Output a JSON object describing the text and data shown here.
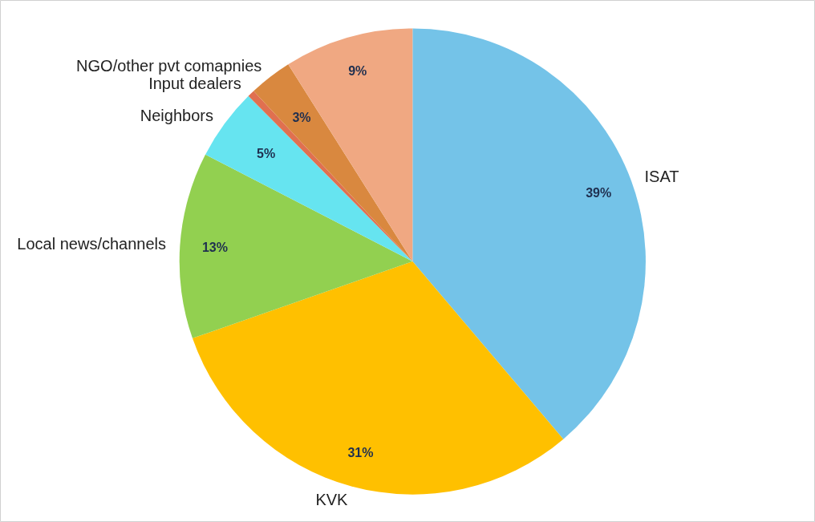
{
  "chart_data": {
    "type": "pie",
    "categories": [
      "ISAT",
      "KVK",
      "Local news/channels",
      "Neighbors",
      "Input dealers",
      "NGO/other pvt comapnies",
      null
    ],
    "values": [
      39,
      31,
      13,
      5,
      0.5,
      3,
      9
    ],
    "colors": [
      "#74c3e8",
      "#ffc000",
      "#92d050",
      "#66e4f0",
      "#e07050",
      "#d9883f",
      "#f0a882"
    ],
    "value_labels": [
      "39%",
      "31%",
      "13%",
      "5%",
      null,
      "3%",
      "9%"
    ]
  }
}
